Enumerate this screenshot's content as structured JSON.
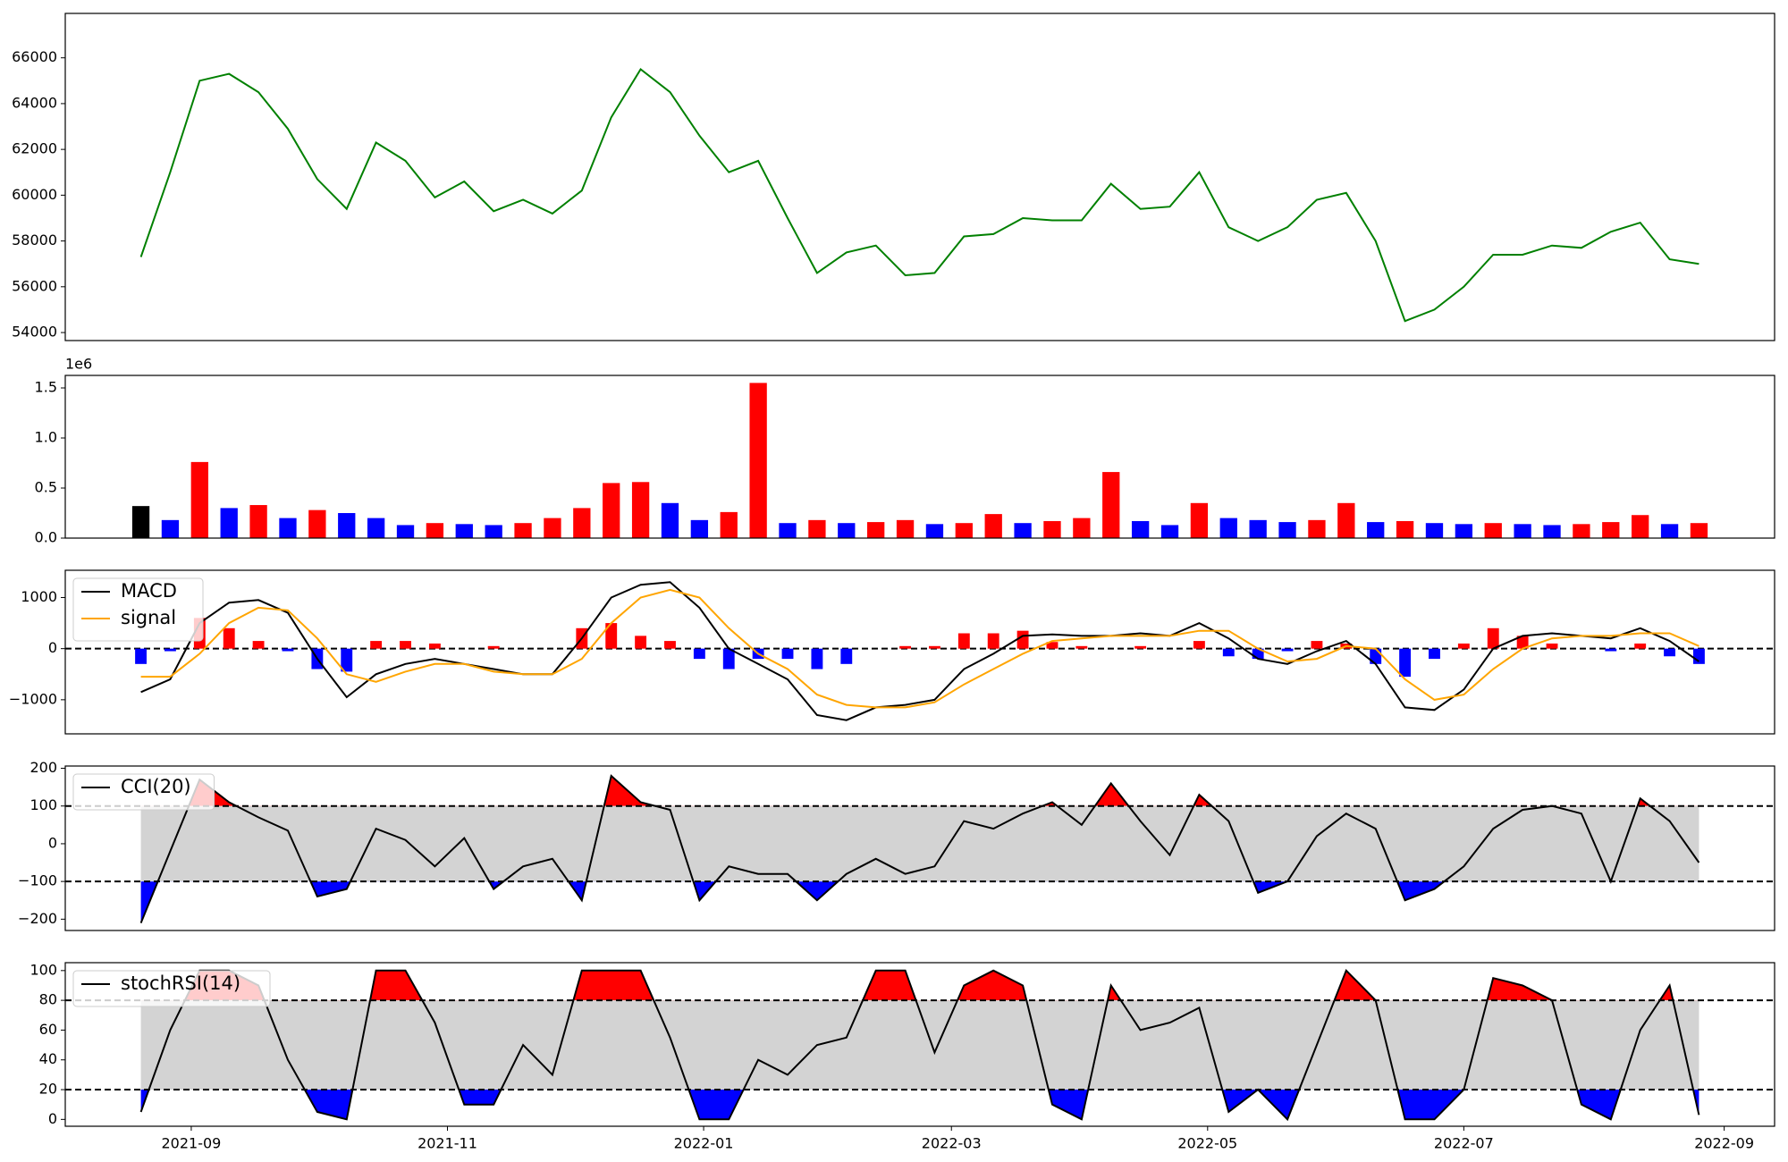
{
  "chart_data": [
    {
      "type": "line",
      "x": [
        "2021-08-20",
        "2021-08-27",
        "2021-09-03",
        "2021-09-10",
        "2021-09-17",
        "2021-09-24",
        "2021-10-01",
        "2021-10-08",
        "2021-10-15",
        "2021-10-22",
        "2021-10-29",
        "2021-11-05",
        "2021-11-12",
        "2021-11-19",
        "2021-11-26",
        "2021-12-03",
        "2021-12-10",
        "2021-12-17",
        "2021-12-24",
        "2021-12-31",
        "2022-01-07",
        "2022-01-14",
        "2022-01-21",
        "2022-01-28",
        "2022-02-04",
        "2022-02-11",
        "2022-02-18",
        "2022-02-25",
        "2022-03-04",
        "2022-03-11",
        "2022-03-18",
        "2022-03-25",
        "2022-04-01",
        "2022-04-08",
        "2022-04-15",
        "2022-04-22",
        "2022-04-29",
        "2022-05-06",
        "2022-05-13",
        "2022-05-20",
        "2022-05-27",
        "2022-06-03",
        "2022-06-10",
        "2022-06-17",
        "2022-06-24",
        "2022-07-01",
        "2022-07-08",
        "2022-07-15",
        "2022-07-22",
        "2022-07-29",
        "2022-08-05",
        "2022-08-12",
        "2022-08-19",
        "2022-08-26"
      ],
      "values": [
        57300,
        61000,
        65000,
        65300,
        64500,
        62900,
        60700,
        59400,
        62300,
        61500,
        59900,
        60600,
        59300,
        59800,
        59200,
        60200,
        63400,
        65500,
        64500,
        62600,
        61000,
        61500,
        59000,
        56600,
        57500,
        57800,
        56500,
        56600,
        58200,
        58300,
        59000,
        58900,
        58900,
        60500,
        59400,
        59500,
        61000,
        58600,
        58000,
        58600,
        59800,
        60100,
        58000,
        54500,
        55000,
        56000,
        57400,
        57400,
        57800,
        57700,
        58400,
        58800,
        57200,
        57000
      ],
      "color": "#008000",
      "xlim": [
        "2021-08-02",
        "2022-09-13"
      ],
      "ylim": [
        53650,
        67940
      ],
      "yticks": [
        54000,
        56000,
        58000,
        60000,
        62000,
        64000,
        66000
      ]
    },
    {
      "type": "bar",
      "x": [
        "2021-08-20",
        "2021-08-27",
        "2021-09-03",
        "2021-09-10",
        "2021-09-17",
        "2021-09-24",
        "2021-10-01",
        "2021-10-08",
        "2021-10-15",
        "2021-10-22",
        "2021-10-29",
        "2021-11-05",
        "2021-11-12",
        "2021-11-19",
        "2021-11-26",
        "2021-12-03",
        "2021-12-10",
        "2021-12-17",
        "2021-12-24",
        "2021-12-31",
        "2022-01-07",
        "2022-01-14",
        "2022-01-21",
        "2022-01-28",
        "2022-02-04",
        "2022-02-11",
        "2022-02-18",
        "2022-02-25",
        "2022-03-04",
        "2022-03-11",
        "2022-03-18",
        "2022-03-25",
        "2022-04-01",
        "2022-04-08",
        "2022-04-15",
        "2022-04-22",
        "2022-04-29",
        "2022-05-06",
        "2022-05-13",
        "2022-05-20",
        "2022-05-27",
        "2022-06-03",
        "2022-06-10",
        "2022-06-17",
        "2022-06-24",
        "2022-07-01",
        "2022-07-08",
        "2022-07-15",
        "2022-07-22",
        "2022-07-29",
        "2022-08-05",
        "2022-08-12",
        "2022-08-19",
        "2022-08-26"
      ],
      "values": [
        320000,
        180000,
        760000,
        300000,
        330000,
        200000,
        280000,
        250000,
        200000,
        130000,
        150000,
        140000,
        130000,
        150000,
        200000,
        300000,
        550000,
        560000,
        350000,
        180000,
        260000,
        1550000,
        150000,
        180000,
        150000,
        160000,
        180000,
        140000,
        150000,
        240000,
        150000,
        170000,
        200000,
        660000,
        170000,
        130000,
        350000,
        200000,
        180000,
        160000,
        180000,
        350000,
        160000,
        170000,
        150000,
        140000,
        150000,
        140000,
        130000,
        140000,
        160000,
        230000,
        140000,
        150000
      ],
      "colors": {
        "up": "#ff0000",
        "down": "#0000ff",
        "flat": "#000000"
      },
      "offset_text": "1e6",
      "xlim": [
        "2021-08-02",
        "2022-09-13"
      ],
      "ylim": [
        0,
        1625000
      ],
      "yticks": [
        {
          "value": 0,
          "label": "0.0"
        },
        {
          "value": 500000,
          "label": "0.5"
        },
        {
          "value": 1000000,
          "label": "1.0"
        },
        {
          "value": 1500000,
          "label": "1.5"
        }
      ]
    },
    {
      "type": "macd",
      "x": [
        "2021-08-20",
        "2021-08-27",
        "2021-09-03",
        "2021-09-10",
        "2021-09-17",
        "2021-09-24",
        "2021-10-01",
        "2021-10-08",
        "2021-10-15",
        "2021-10-22",
        "2021-10-29",
        "2021-11-05",
        "2021-11-12",
        "2021-11-19",
        "2021-11-26",
        "2021-12-03",
        "2021-12-10",
        "2021-12-17",
        "2021-12-24",
        "2021-12-31",
        "2022-01-07",
        "2022-01-14",
        "2022-01-21",
        "2022-01-28",
        "2022-02-04",
        "2022-02-11",
        "2022-02-18",
        "2022-02-25",
        "2022-03-04",
        "2022-03-11",
        "2022-03-18",
        "2022-03-25",
        "2022-04-01",
        "2022-04-08",
        "2022-04-15",
        "2022-04-22",
        "2022-04-29",
        "2022-05-06",
        "2022-05-13",
        "2022-05-20",
        "2022-05-27",
        "2022-06-03",
        "2022-06-10",
        "2022-06-17",
        "2022-06-24",
        "2022-07-01",
        "2022-07-08",
        "2022-07-15",
        "2022-07-22",
        "2022-07-29",
        "2022-08-05",
        "2022-08-12",
        "2022-08-19",
        "2022-08-26"
      ],
      "series": [
        {
          "name": "MACD",
          "color": "#000000",
          "values": [
            -850,
            -600,
            500,
            900,
            950,
            700,
            -200,
            -950,
            -500,
            -300,
            -200,
            -300,
            -400,
            -500,
            -500,
            200,
            1000,
            1250,
            1300,
            800,
            0,
            -300,
            -600,
            -1300,
            -1400,
            -1150,
            -1100,
            -1000,
            -400,
            -100,
            250,
            280,
            250,
            250,
            300,
            250,
            500,
            200,
            -200,
            -300,
            -50,
            150,
            -300,
            -1150,
            -1200,
            -800,
            0,
            250,
            300,
            250,
            200,
            400,
            150,
            -250
          ]
        },
        {
          "name": "signal",
          "color": "#ffa500",
          "values": [
            -550,
            -550,
            -100,
            500,
            800,
            750,
            200,
            -500,
            -650,
            -450,
            -300,
            -300,
            -450,
            -500,
            -500,
            -200,
            500,
            1000,
            1150,
            1000,
            400,
            -100,
            -400,
            -900,
            -1100,
            -1150,
            -1150,
            -1050,
            -700,
            -400,
            -100,
            150,
            200,
            250,
            250,
            250,
            350,
            350,
            0,
            -250,
            -200,
            50,
            0,
            -600,
            -1000,
            -900,
            -400,
            0,
            200,
            250,
            250,
            300,
            300,
            50
          ]
        }
      ],
      "histogram": {
        "values": [
          -300,
          -50,
          600,
          400,
          150,
          -50,
          -400,
          -450,
          150,
          150,
          100,
          0,
          50,
          0,
          0,
          400,
          500,
          250,
          150,
          -200,
          -400,
          -200,
          -200,
          -400,
          -300,
          0,
          50,
          50,
          300,
          300,
          350,
          130,
          50,
          0,
          50,
          0,
          150,
          -150,
          -200,
          -50,
          150,
          100,
          -300,
          -550,
          -200,
          100,
          400,
          250,
          100,
          0,
          -50,
          100,
          -150,
          -300
        ],
        "colors": {
          "up": "#ff0000",
          "down": "#0000ff"
        }
      },
      "hline": 0,
      "legend": "upper left",
      "xlim": [
        "2021-08-02",
        "2022-09-13"
      ],
      "ylim": [
        -1667,
        1533
      ],
      "yticks": [
        {
          "value": -1000,
          "label": "−1000"
        },
        0,
        1000
      ]
    },
    {
      "type": "band",
      "x": [
        "2021-08-20",
        "2021-08-27",
        "2021-09-03",
        "2021-09-10",
        "2021-09-17",
        "2021-09-24",
        "2021-10-01",
        "2021-10-08",
        "2021-10-15",
        "2021-10-22",
        "2021-10-29",
        "2021-11-05",
        "2021-11-12",
        "2021-11-19",
        "2021-11-26",
        "2021-12-03",
        "2021-12-10",
        "2021-12-17",
        "2021-12-24",
        "2021-12-31",
        "2022-01-07",
        "2022-01-14",
        "2022-01-21",
        "2022-01-28",
        "2022-02-04",
        "2022-02-11",
        "2022-02-18",
        "2022-02-25",
        "2022-03-04",
        "2022-03-11",
        "2022-03-18",
        "2022-03-25",
        "2022-04-01",
        "2022-04-08",
        "2022-04-15",
        "2022-04-22",
        "2022-04-29",
        "2022-05-06",
        "2022-05-13",
        "2022-05-20",
        "2022-05-27",
        "2022-06-03",
        "2022-06-10",
        "2022-06-17",
        "2022-06-24",
        "2022-07-01",
        "2022-07-08",
        "2022-07-15",
        "2022-07-22",
        "2022-07-29",
        "2022-08-05",
        "2022-08-12",
        "2022-08-19",
        "2022-08-26"
      ],
      "series": [
        {
          "name": "CCI(20)",
          "color": "#000000",
          "values": [
            -210,
            -20,
            170,
            110,
            70,
            35,
            -140,
            -120,
            40,
            10,
            -60,
            15,
            -120,
            -60,
            -40,
            -150,
            180,
            110,
            90,
            -150,
            -60,
            -80,
            -80,
            -150,
            -80,
            -40,
            -80,
            -60,
            60,
            40,
            80,
            110,
            50,
            160,
            60,
            -30,
            130,
            60,
            -130,
            -100,
            20,
            80,
            40,
            -150,
            -120,
            -60,
            40,
            90,
            100,
            80,
            -100,
            120,
            60,
            -50
          ]
        }
      ],
      "bands": {
        "upper": 100,
        "lower": -100,
        "fill": "#d3d3d3",
        "upper_color": "#ff0000",
        "lower_color": "#0000ff"
      },
      "legend": "upper left",
      "xlim": [
        "2021-08-02",
        "2022-09-13"
      ],
      "ylim": [
        -230,
        206
      ],
      "yticks": [
        {
          "value": -200,
          "label": "−200"
        },
        {
          "value": -100,
          "label": "−100"
        },
        0,
        100,
        200
      ]
    },
    {
      "type": "band",
      "x": [
        "2021-08-20",
        "2021-08-27",
        "2021-09-03",
        "2021-09-10",
        "2021-09-17",
        "2021-09-24",
        "2021-10-01",
        "2021-10-08",
        "2021-10-15",
        "2021-10-22",
        "2021-10-29",
        "2021-11-05",
        "2021-11-12",
        "2021-11-19",
        "2021-11-26",
        "2021-12-03",
        "2021-12-10",
        "2021-12-17",
        "2021-12-24",
        "2021-12-31",
        "2022-01-07",
        "2022-01-14",
        "2022-01-21",
        "2022-01-28",
        "2022-02-04",
        "2022-02-11",
        "2022-02-18",
        "2022-02-25",
        "2022-03-04",
        "2022-03-11",
        "2022-03-18",
        "2022-03-25",
        "2022-04-01",
        "2022-04-08",
        "2022-04-15",
        "2022-04-22",
        "2022-04-29",
        "2022-05-06",
        "2022-05-13",
        "2022-05-20",
        "2022-05-27",
        "2022-06-03",
        "2022-06-10",
        "2022-06-17",
        "2022-06-24",
        "2022-07-01",
        "2022-07-08",
        "2022-07-15",
        "2022-07-22",
        "2022-07-29",
        "2022-08-05",
        "2022-08-12",
        "2022-08-19",
        "2022-08-26"
      ],
      "series": [
        {
          "name": "stochRSI(14)",
          "color": "#000000",
          "values": [
            5,
            60,
            100,
            100,
            90,
            40,
            5,
            0,
            100,
            100,
            65,
            10,
            10,
            50,
            30,
            100,
            100,
            100,
            55,
            0,
            0,
            40,
            30,
            50,
            55,
            100,
            100,
            45,
            90,
            100,
            90,
            10,
            0,
            90,
            60,
            65,
            75,
            5,
            20,
            0,
            50,
            100,
            80,
            0,
            0,
            20,
            95,
            90,
            80,
            10,
            0,
            60,
            90,
            3
          ]
        }
      ],
      "bands": {
        "upper": 80,
        "lower": 20,
        "fill": "#d3d3d3",
        "upper_color": "#ff0000",
        "lower_color": "#0000ff"
      },
      "legend": "upper left",
      "xlim": [
        "2021-08-02",
        "2022-09-13"
      ],
      "ylim": [
        -4.6,
        105.3
      ],
      "yticks": [
        0,
        20,
        40,
        60,
        80,
        100
      ],
      "xticks": [
        {
          "value": "2021-09-01",
          "label": "2021-09"
        },
        {
          "value": "2021-11-01",
          "label": "2021-11"
        },
        {
          "value": "2022-01-01",
          "label": "2022-01"
        },
        {
          "value": "2022-03-01",
          "label": "2022-03"
        },
        {
          "value": "2022-05-01",
          "label": "2022-05"
        },
        {
          "value": "2022-07-01",
          "label": "2022-07"
        },
        {
          "value": "2022-09-01",
          "label": "2022-09"
        }
      ]
    }
  ]
}
